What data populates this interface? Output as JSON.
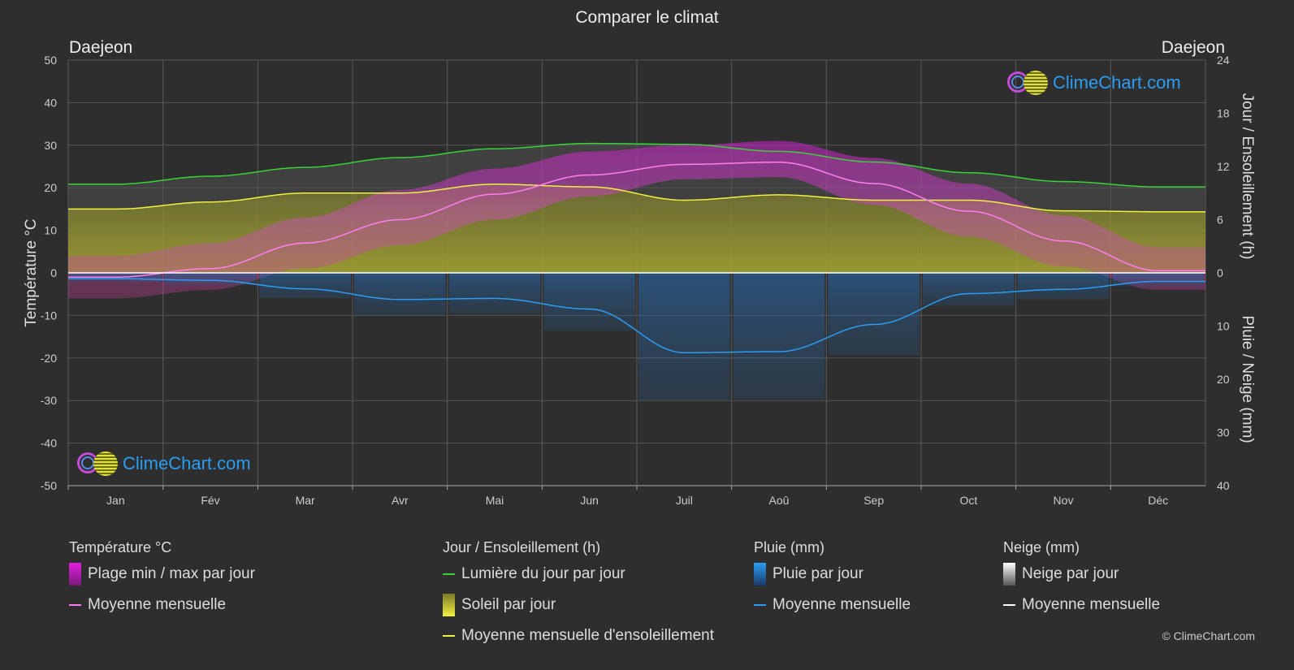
{
  "title": "Comparer le climat",
  "location_left": "Daejeon",
  "location_right": "Daejeon",
  "brand": "ClimeChart.com",
  "copyright": "© ClimeChart.com",
  "colors": {
    "background": "#2e2e2e",
    "temp_range": "#d020d0",
    "temp_mean": "#ff7ef0",
    "daylight": "#3ad23a",
    "sunshine_fill": "#c8c83a",
    "sunshine_mean": "#f0f040",
    "rain": "#2e7fd0",
    "rain_mean": "#2a9df4",
    "snow": "#cccccc",
    "snow_mean": "#ffffff",
    "brand_blue": "#2a9df4"
  },
  "chart_data": {
    "type": "area",
    "months": [
      "Jan",
      "Fév",
      "Mar",
      "Avr",
      "Mai",
      "Jun",
      "Juil",
      "Aoû",
      "Sep",
      "Oct",
      "Nov",
      "Déc"
    ],
    "axes": {
      "left": {
        "label": "Température °C",
        "min": -50,
        "max": 50,
        "ticks": [
          50,
          40,
          30,
          20,
          10,
          0,
          -10,
          -20,
          -30,
          -40,
          -50
        ]
      },
      "right_top": {
        "label": "Jour / Ensoleillement (h)",
        "min": 0,
        "max": 24,
        "ticks": [
          24,
          18,
          12,
          6,
          0
        ]
      },
      "right_bottom": {
        "label": "Pluie / Neige (mm)",
        "min": 0,
        "max": 40,
        "ticks": [
          0,
          10,
          20,
          30,
          40
        ]
      }
    },
    "series": {
      "temp_mean_monthly": [
        -1.0,
        1.0,
        7.0,
        12.5,
        18.5,
        23.0,
        25.5,
        26.0,
        21.0,
        14.5,
        7.5,
        0.5
      ],
      "temp_max_daily_avg": [
        4,
        7,
        13,
        19.5,
        24.5,
        28.5,
        30,
        31,
        27,
        21,
        13.5,
        6
      ],
      "temp_min_daily_avg": [
        -6,
        -4,
        1,
        6.5,
        12.5,
        18,
        22,
        22.5,
        16,
        8.5,
        1.5,
        -4
      ],
      "daylight_hours": [
        10.0,
        10.9,
        11.9,
        13.0,
        14.0,
        14.6,
        14.5,
        13.7,
        12.5,
        11.3,
        10.3,
        9.7
      ],
      "sunshine_hours": [
        7.2,
        8.0,
        9.0,
        9.0,
        10.0,
        9.7,
        8.2,
        8.8,
        8.2,
        8.2,
        7.0,
        6.9
      ],
      "rain_mean_mm": [
        1.1,
        1.4,
        3.0,
        5.0,
        4.8,
        6.8,
        15.0,
        14.8,
        9.7,
        3.9,
        3.1,
        1.6
      ],
      "snow_mean_mm": [
        0,
        0,
        0,
        0,
        0,
        0,
        0,
        0,
        0,
        0,
        0,
        0
      ]
    },
    "grid": true
  },
  "legend": {
    "temperature": {
      "header": "Température °C",
      "items": [
        "Plage min / max par jour",
        "Moyenne mensuelle"
      ]
    },
    "sun": {
      "header": "Jour / Ensoleillement (h)",
      "items": [
        "Lumière du jour par jour",
        "Soleil par jour",
        "Moyenne mensuelle d'ensoleillement"
      ]
    },
    "rain": {
      "header": "Pluie (mm)",
      "items": [
        "Pluie par jour",
        "Moyenne mensuelle"
      ]
    },
    "snow": {
      "header": "Neige (mm)",
      "items": [
        "Neige par jour",
        "Moyenne mensuelle"
      ]
    }
  }
}
